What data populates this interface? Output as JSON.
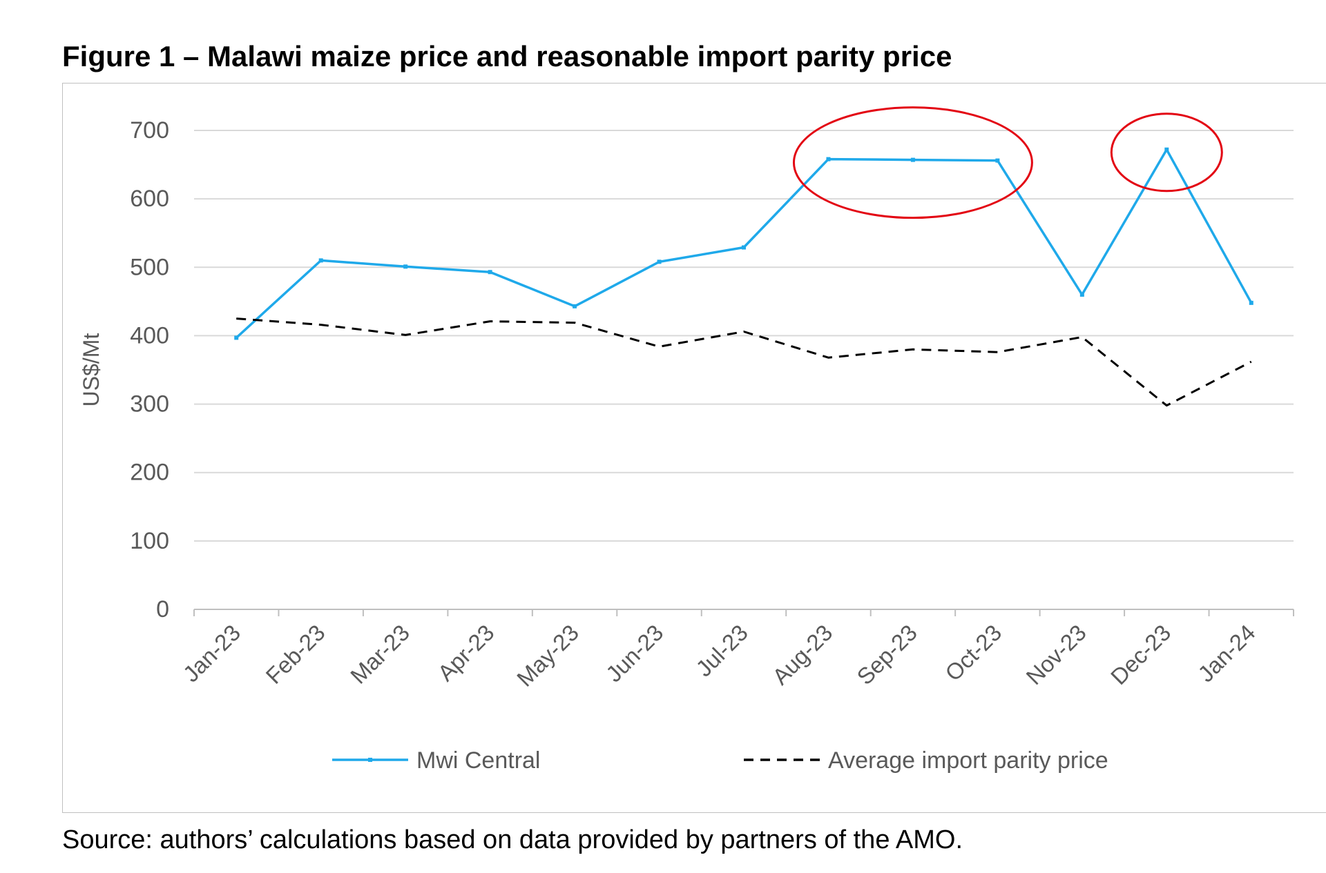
{
  "figure": {
    "title": "Figure 1 – Malawi maize price and reasonable import parity price",
    "source": "Source: authors’ calculations based on data provided by partners of the AMO."
  },
  "chart_data": {
    "type": "line",
    "title": "Figure 1 – Malawi maize price and reasonable import parity price",
    "xlabel": "",
    "ylabel": "US$/Mt",
    "ylim": [
      0,
      700
    ],
    "yticks": [
      0,
      100,
      200,
      300,
      400,
      500,
      600,
      700
    ],
    "grid": true,
    "legend_position": "bottom",
    "categories": [
      "Jan-23",
      "Feb-23",
      "Mar-23",
      "Apr-23",
      "May-23",
      "Jun-23",
      "Jul-23",
      "Aug-23",
      "Sep-23",
      "Oct-23",
      "Nov-23",
      "Dec-23",
      "Jan-24"
    ],
    "series": [
      {
        "name": "Mwi Central",
        "style": "solid",
        "color": "#1fa9ea",
        "values": [
          397,
          510,
          501,
          493,
          443,
          508,
          529,
          658,
          657,
          656,
          460,
          672,
          448
        ]
      },
      {
        "name": "Average import parity price",
        "style": "dashed",
        "color": "#000000",
        "values": [
          425,
          416,
          401,
          421,
          419,
          384,
          406,
          368,
          380,
          376,
          398,
          298,
          362
        ]
      }
    ],
    "annotations": [
      {
        "type": "ellipse",
        "color": "#e30613",
        "covers": [
          "Aug-23",
          "Sep-23",
          "Oct-23"
        ],
        "series": "Mwi Central"
      },
      {
        "type": "ellipse",
        "color": "#e30613",
        "covers": [
          "Dec-23"
        ],
        "series": "Mwi Central"
      }
    ]
  }
}
